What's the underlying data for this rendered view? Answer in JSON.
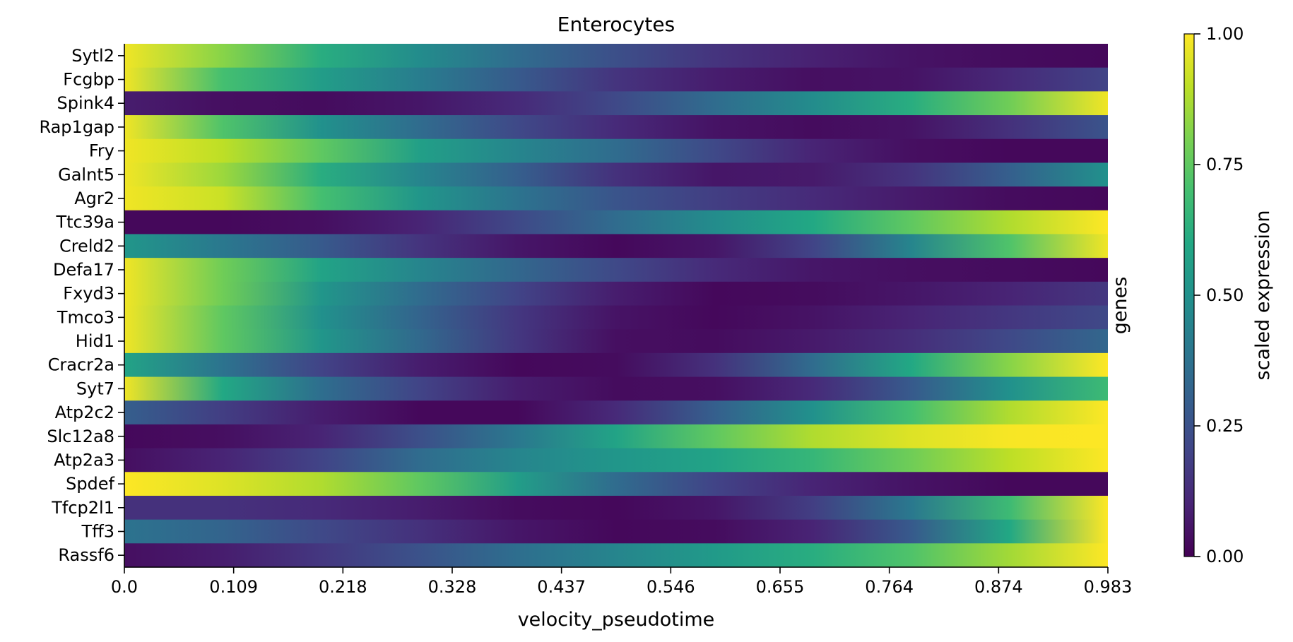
{
  "chart_data": {
    "type": "heatmap",
    "title": "Enterocytes",
    "xlabel": "velocity_pseudotime",
    "ylabel_right": "genes",
    "x_ticks": [
      "0.0",
      "0.109",
      "0.218",
      "0.328",
      "0.437",
      "0.546",
      "0.655",
      "0.764",
      "0.874",
      "0.983"
    ],
    "xlim": [
      0.0,
      0.983
    ],
    "colormap": "viridis",
    "colorbar": {
      "label": "scaled expression",
      "ticks": [
        "0.00",
        "0.25",
        "0.50",
        "0.75",
        "1.00"
      ],
      "range": [
        0.0,
        1.0
      ]
    },
    "profile_x": [
      0.0,
      0.1,
      0.2,
      0.3,
      0.4,
      0.5,
      0.6,
      0.7,
      0.8,
      0.9,
      1.0
    ],
    "rows": [
      {
        "gene": "Sytl2",
        "values": [
          0.98,
          0.82,
          0.62,
          0.48,
          0.35,
          0.24,
          0.15,
          0.09,
          0.05,
          0.03,
          0.02
        ]
      },
      {
        "gene": "Fcgbp",
        "values": [
          0.98,
          0.7,
          0.55,
          0.42,
          0.28,
          0.15,
          0.08,
          0.04,
          0.05,
          0.12,
          0.2
        ]
      },
      {
        "gene": "Spink4",
        "values": [
          0.08,
          0.04,
          0.03,
          0.06,
          0.12,
          0.22,
          0.35,
          0.48,
          0.62,
          0.78,
          0.98
        ]
      },
      {
        "gene": "Rap1gap",
        "values": [
          0.98,
          0.72,
          0.5,
          0.35,
          0.22,
          0.12,
          0.05,
          0.03,
          0.05,
          0.14,
          0.26
        ]
      },
      {
        "gene": "Fry",
        "values": [
          0.98,
          0.9,
          0.75,
          0.56,
          0.45,
          0.35,
          0.22,
          0.1,
          0.04,
          0.02,
          0.02
        ]
      },
      {
        "gene": "Galnt5",
        "values": [
          0.98,
          0.85,
          0.62,
          0.45,
          0.3,
          0.14,
          0.06,
          0.07,
          0.15,
          0.3,
          0.5
        ]
      },
      {
        "gene": "Agr2",
        "values": [
          0.98,
          0.92,
          0.7,
          0.52,
          0.38,
          0.26,
          0.18,
          0.12,
          0.07,
          0.03,
          0.02
        ]
      },
      {
        "gene": "Ttc39a",
        "values": [
          0.02,
          0.02,
          0.04,
          0.1,
          0.22,
          0.35,
          0.48,
          0.6,
          0.75,
          0.88,
          1.0
        ]
      },
      {
        "gene": "Creld2",
        "values": [
          0.52,
          0.4,
          0.28,
          0.15,
          0.06,
          0.02,
          0.06,
          0.2,
          0.45,
          0.72,
          0.98
        ]
      },
      {
        "gene": "Defa17",
        "values": [
          0.98,
          0.78,
          0.58,
          0.45,
          0.33,
          0.22,
          0.12,
          0.06,
          0.04,
          0.03,
          0.02
        ]
      },
      {
        "gene": "Fxyd3",
        "values": [
          0.98,
          0.78,
          0.52,
          0.35,
          0.2,
          0.08,
          0.02,
          0.03,
          0.06,
          0.1,
          0.16
        ]
      },
      {
        "gene": "Tmco3",
        "values": [
          0.98,
          0.75,
          0.5,
          0.32,
          0.16,
          0.05,
          0.02,
          0.05,
          0.1,
          0.16,
          0.22
        ]
      },
      {
        "gene": "Hid1",
        "values": [
          0.98,
          0.75,
          0.52,
          0.34,
          0.16,
          0.04,
          0.03,
          0.07,
          0.13,
          0.22,
          0.33
        ]
      },
      {
        "gene": "Cracr2a",
        "values": [
          0.58,
          0.38,
          0.2,
          0.08,
          0.02,
          0.03,
          0.14,
          0.35,
          0.6,
          0.82,
          1.0
        ]
      },
      {
        "gene": "Syt7",
        "values": [
          0.98,
          0.6,
          0.36,
          0.2,
          0.08,
          0.03,
          0.04,
          0.12,
          0.28,
          0.5,
          0.68
        ]
      },
      {
        "gene": "Atp2c2",
        "values": [
          0.3,
          0.18,
          0.08,
          0.02,
          0.02,
          0.12,
          0.3,
          0.5,
          0.7,
          0.88,
          1.0
        ]
      },
      {
        "gene": "Slc12a8",
        "values": [
          0.02,
          0.04,
          0.1,
          0.24,
          0.4,
          0.58,
          0.75,
          0.88,
          0.95,
          0.99,
          1.0
        ]
      },
      {
        "gene": "Atp2a3",
        "values": [
          0.04,
          0.1,
          0.2,
          0.35,
          0.45,
          0.52,
          0.58,
          0.66,
          0.78,
          0.9,
          1.0
        ]
      },
      {
        "gene": "Spdef",
        "values": [
          1.0,
          0.95,
          0.88,
          0.75,
          0.55,
          0.35,
          0.2,
          0.1,
          0.05,
          0.02,
          0.02
        ]
      },
      {
        "gene": "Tfcp2l1",
        "values": [
          0.14,
          0.14,
          0.12,
          0.08,
          0.03,
          0.02,
          0.06,
          0.18,
          0.4,
          0.68,
          1.0
        ]
      },
      {
        "gene": "Tff3",
        "values": [
          0.38,
          0.32,
          0.22,
          0.14,
          0.06,
          0.02,
          0.03,
          0.1,
          0.28,
          0.6,
          1.0
        ]
      },
      {
        "gene": "Rassf6",
        "values": [
          0.04,
          0.08,
          0.16,
          0.25,
          0.36,
          0.45,
          0.54,
          0.62,
          0.72,
          0.86,
          1.0
        ]
      }
    ]
  }
}
